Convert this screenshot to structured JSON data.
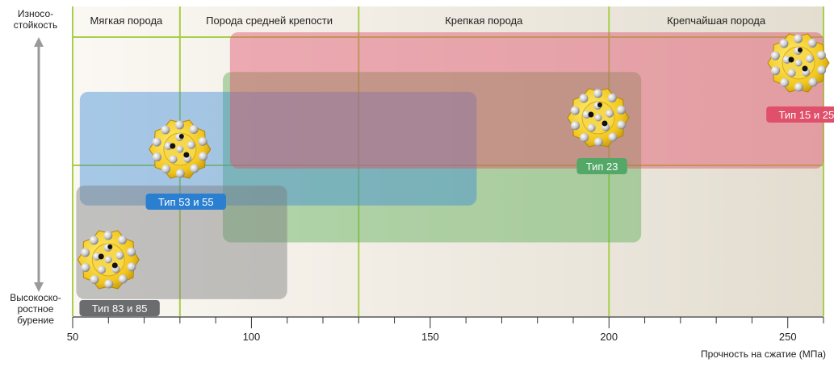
{
  "labels": {
    "y_top": [
      "Износо-",
      "стойкость"
    ],
    "y_bottom": [
      "Высокоско-",
      "ростное",
      "бурение"
    ],
    "x_axis": "Прочность на сжатие (МПа)"
  },
  "zones": [
    {
      "name": "Мягкая порода",
      "x0": 50,
      "x1": 80
    },
    {
      "name": "Порода средней крепости",
      "x0": 80,
      "x1": 130
    },
    {
      "name": "Крепкая порода",
      "x0": 130,
      "x1": 200
    },
    {
      "name": "Крепчайшая порода",
      "x0": 200,
      "x1": 260
    }
  ],
  "x_axis": {
    "min": 50,
    "max": 260,
    "ticks": [
      50,
      100,
      150,
      200,
      250
    ],
    "minor_step": 10
  },
  "bits": [
    {
      "label": "Тип 83 и 85",
      "range": [
        51,
        110
      ],
      "level": [
        0.06,
        0.46
      ],
      "color": "#7b7d7e",
      "badge_color": "#6a6c6d",
      "bit_x": 60
    },
    {
      "label": "Тип 53 и 55",
      "range": [
        52,
        163
      ],
      "level": [
        0.39,
        0.79
      ],
      "color": "#3f8fd6",
      "badge_color": "#2a7fd0",
      "bit_x": 80
    },
    {
      "label": "Тип 23",
      "range": [
        92,
        209
      ],
      "level": [
        0.26,
        0.86
      ],
      "color": "#5cae55",
      "badge_color": "#53a868",
      "bit_x": 197
    },
    {
      "label": "Тип 15 и 25",
      "range": [
        94,
        260
      ],
      "level": [
        0.52,
        1.0
      ],
      "color": "#e0506a",
      "badge_color": "#e0506a",
      "bit_x": 253
    }
  ],
  "colors": {
    "grid": "#a8cf4a",
    "axis": "#333333"
  }
}
